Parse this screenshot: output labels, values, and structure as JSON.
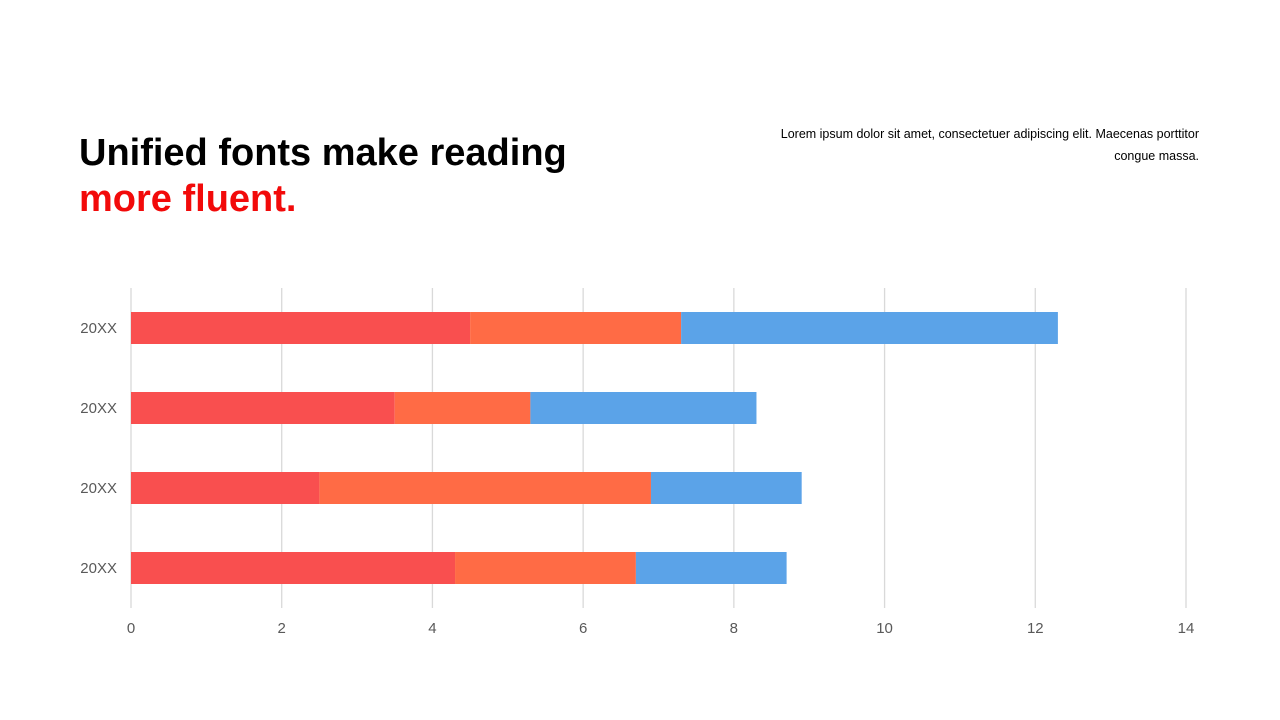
{
  "slide": {
    "title_line1": "Unified fonts make reading",
    "title_line2": "more fluent.",
    "description": "Lorem ipsum dolor sit amet, consectetuer adipiscing elit. Maecenas porttitor congue massa.",
    "colors": {
      "title": "#000000",
      "title_accent": "#f20a0a",
      "gridline": "#d9d9d9",
      "tick_text": "#595959"
    }
  },
  "chart_data": {
    "type": "bar",
    "orientation": "horizontal",
    "stacked": true,
    "categories": [
      "20XX",
      "20XX",
      "20XX",
      "20XX"
    ],
    "series": [
      {
        "color": "#f94f4f",
        "values": [
          4.5,
          3.5,
          2.5,
          4.3
        ]
      },
      {
        "color": "#ff6b45",
        "values": [
          2.8,
          1.8,
          4.4,
          2.4
        ]
      },
      {
        "color": "#5ba3e8",
        "values": [
          5.0,
          3.0,
          2.0,
          2.0
        ]
      }
    ],
    "xlim": [
      0,
      14
    ],
    "xticks": [
      0,
      2,
      4,
      6,
      8,
      10,
      12,
      14
    ],
    "grid": "vertical",
    "legend": "none",
    "title": "",
    "xlabel": "",
    "ylabel": ""
  }
}
